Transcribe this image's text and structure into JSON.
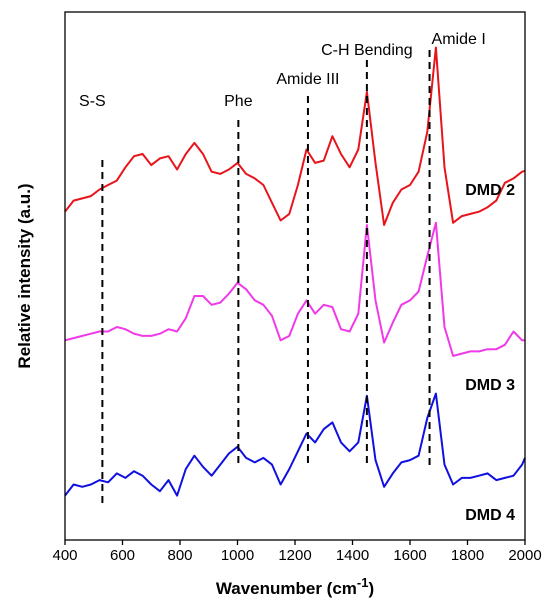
{
  "chart_data": {
    "type": "line",
    "title": "",
    "xlabel": "Wavenumber (cm",
    "xlabel_sup": "-1",
    "xlabel_close": ")",
    "ylabel": "Relative intensity (a.u.)",
    "xlim": [
      400,
      2000
    ],
    "xticks": [
      400,
      600,
      800,
      1000,
      1200,
      1400,
      1600,
      1800,
      2000
    ],
    "yticks_shown": false,
    "grid": false,
    "legend": "none (series labeled inline at right)",
    "annotations": [
      {
        "label": "S-S",
        "x": 530
      },
      {
        "label": "Phe",
        "x": 1003
      },
      {
        "label": "Amide III",
        "x": 1245
      },
      {
        "label": "C-H Bending",
        "x": 1450
      },
      {
        "label": "Amide I",
        "x": 1668
      }
    ],
    "series": [
      {
        "name": "DMD 2",
        "color": "#e8141c",
        "x": [
          400,
          430,
          460,
          490,
          520,
          550,
          580,
          610,
          640,
          670,
          700,
          730,
          760,
          790,
          820,
          850,
          880,
          910,
          940,
          970,
          1000,
          1030,
          1060,
          1090,
          1120,
          1150,
          1180,
          1210,
          1240,
          1270,
          1300,
          1330,
          1360,
          1390,
          1420,
          1450,
          1480,
          1510,
          1540,
          1570,
          1600,
          1630,
          1660,
          1690,
          1720,
          1750,
          1780,
          1810,
          1840,
          1870,
          1900,
          1930,
          1960,
          1990,
          2000
        ],
        "y": [
          5.2,
          5.45,
          5.5,
          5.55,
          5.7,
          5.8,
          5.9,
          6.2,
          6.45,
          6.5,
          6.25,
          6.4,
          6.45,
          6.15,
          6.5,
          6.75,
          6.5,
          6.1,
          6.05,
          6.15,
          6.3,
          6.05,
          5.95,
          5.8,
          5.4,
          5.0,
          5.15,
          5.8,
          6.6,
          6.3,
          6.35,
          6.9,
          6.5,
          6.2,
          6.6,
          7.9,
          6.3,
          4.9,
          5.4,
          5.7,
          5.8,
          6.1,
          7.0,
          8.9,
          6.2,
          4.95,
          5.1,
          5.15,
          5.2,
          5.3,
          5.45,
          5.85,
          5.95,
          6.1,
          6.12
        ]
      },
      {
        "name": "DMD 3",
        "color": "#f03ae8",
        "x": [
          400,
          430,
          460,
          490,
          520,
          550,
          580,
          610,
          640,
          670,
          700,
          730,
          760,
          790,
          820,
          850,
          880,
          910,
          940,
          970,
          1000,
          1030,
          1060,
          1090,
          1120,
          1150,
          1180,
          1210,
          1240,
          1270,
          1300,
          1330,
          1360,
          1390,
          1420,
          1450,
          1480,
          1510,
          1540,
          1570,
          1600,
          1630,
          1660,
          1690,
          1720,
          1750,
          1780,
          1810,
          1840,
          1870,
          1900,
          1930,
          1960,
          1990,
          2000
        ],
        "y": [
          2.3,
          2.35,
          2.4,
          2.45,
          2.5,
          2.5,
          2.6,
          2.55,
          2.45,
          2.4,
          2.4,
          2.45,
          2.55,
          2.5,
          2.8,
          3.3,
          3.3,
          3.1,
          3.15,
          3.35,
          3.6,
          3.45,
          3.2,
          3.1,
          2.85,
          2.3,
          2.4,
          2.9,
          3.2,
          2.9,
          3.1,
          3.05,
          2.55,
          2.5,
          2.9,
          4.9,
          3.2,
          2.25,
          2.7,
          3.1,
          3.2,
          3.4,
          4.2,
          4.95,
          2.6,
          1.95,
          2.0,
          2.05,
          2.05,
          2.1,
          2.1,
          2.2,
          2.5,
          2.3,
          2.3
        ]
      },
      {
        "name": "DMD 4",
        "color": "#1010e0",
        "x": [
          400,
          430,
          460,
          490,
          520,
          550,
          580,
          610,
          640,
          670,
          700,
          730,
          760,
          790,
          820,
          850,
          880,
          910,
          940,
          970,
          1000,
          1030,
          1060,
          1090,
          1120,
          1150,
          1180,
          1210,
          1240,
          1270,
          1300,
          1330,
          1360,
          1390,
          1420,
          1450,
          1480,
          1510,
          1540,
          1570,
          1600,
          1630,
          1660,
          1690,
          1720,
          1750,
          1780,
          1810,
          1840,
          1870,
          1900,
          1930,
          1960,
          1990,
          2000
        ],
        "y": [
          -1.2,
          -0.95,
          -1.0,
          -0.95,
          -0.85,
          -0.9,
          -0.7,
          -0.8,
          -0.65,
          -0.75,
          -0.95,
          -1.1,
          -0.85,
          -1.2,
          -0.6,
          -0.3,
          -0.55,
          -0.75,
          -0.5,
          -0.25,
          -0.1,
          -0.35,
          -0.45,
          -0.35,
          -0.5,
          -0.95,
          -0.6,
          -0.2,
          0.2,
          0.0,
          0.3,
          0.45,
          0.0,
          -0.2,
          0.0,
          1.05,
          -0.4,
          -1.0,
          -0.7,
          -0.45,
          -0.4,
          -0.3,
          0.55,
          1.1,
          -0.5,
          -0.95,
          -0.8,
          -0.8,
          -0.75,
          -0.7,
          -0.85,
          -0.8,
          -0.75,
          -0.5,
          -0.35
        ]
      }
    ]
  }
}
